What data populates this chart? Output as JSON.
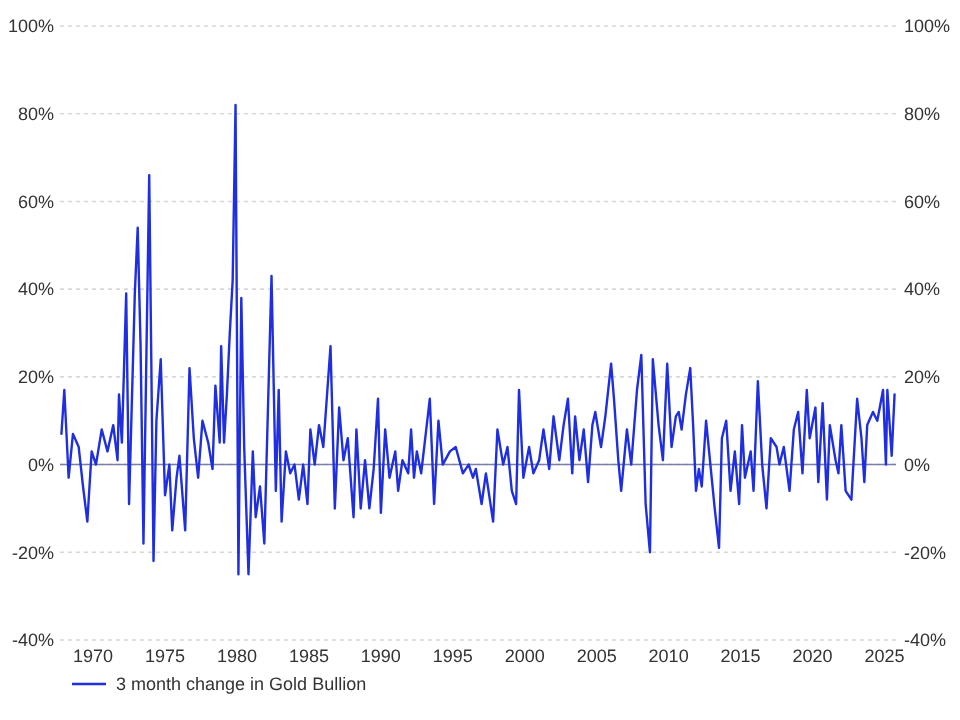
{
  "chart_data": {
    "type": "line",
    "xlim": [
      1967.7,
      2025.8
    ],
    "xticks": [
      1970,
      1975,
      1980,
      1985,
      1990,
      1995,
      2000,
      2005,
      2010,
      2015,
      2020,
      2025
    ],
    "ylim": [
      -40,
      100
    ],
    "yticks": [
      {
        "value": -40,
        "label": "-40%"
      },
      {
        "value": -20,
        "label": "-20%"
      },
      {
        "value": 0,
        "label": "0%"
      },
      {
        "value": 20,
        "label": "20%"
      },
      {
        "value": 40,
        "label": "40%"
      },
      {
        "value": 60,
        "label": "60%"
      },
      {
        "value": 80,
        "label": "80%"
      },
      {
        "value": 100,
        "label": "100%"
      }
    ],
    "y2lim": [
      -40,
      100
    ],
    "y2ticks": [
      {
        "value": -40,
        "label": "-40%"
      },
      {
        "value": -20,
        "label": "-20%"
      },
      {
        "value": 0,
        "label": "0%"
      },
      {
        "value": 20,
        "label": "20%"
      },
      {
        "value": 40,
        "label": "40%"
      },
      {
        "value": 60,
        "label": "60%"
      },
      {
        "value": 80,
        "label": "80%"
      },
      {
        "value": 100,
        "label": "100%"
      }
    ],
    "grid": "y",
    "ref_lines": [
      {
        "axis": "y",
        "value": 0,
        "color": "#7a7fa8"
      }
    ],
    "legend": "bottom left",
    "marker": "none",
    "line_style": "solid",
    "series": [
      {
        "name": "3 month change in Gold Bullion",
        "color": "#1f2fe0",
        "x": [
          1967.8,
          1968.0,
          1968.3,
          1968.6,
          1969.0,
          1969.3,
          1969.6,
          1969.9,
          1970.2,
          1970.6,
          1971.0,
          1971.4,
          1971.7,
          1971.8,
          1972.0,
          1972.3,
          1972.5,
          1972.9,
          1973.1,
          1973.3,
          1973.5,
          1973.9,
          1974.2,
          1974.4,
          1974.7,
          1975.0,
          1975.3,
          1975.5,
          1975.8,
          1976.0,
          1976.4,
          1976.7,
          1977.0,
          1977.3,
          1977.6,
          1978.0,
          1978.3,
          1978.5,
          1978.8,
          1978.9,
          1979.1,
          1979.3,
          1979.5,
          1979.7,
          1979.9,
          1980.1,
          1980.3,
          1980.5,
          1980.8,
          1981.1,
          1981.3,
          1981.6,
          1981.9,
          1982.4,
          1982.7,
          1982.9,
          1983.1,
          1983.4,
          1983.7,
          1984.0,
          1984.3,
          1984.6,
          1984.9,
          1985.1,
          1985.4,
          1985.7,
          1986.0,
          1986.5,
          1986.8,
          1987.1,
          1987.4,
          1987.7,
          1988.1,
          1988.3,
          1988.6,
          1988.9,
          1989.2,
          1989.5,
          1989.8,
          1990.0,
          1990.3,
          1990.6,
          1991.0,
          1991.2,
          1991.5,
          1991.9,
          1992.1,
          1992.3,
          1992.5,
          1992.8,
          1993.4,
          1993.7,
          1994.0,
          1994.3,
          1994.8,
          1995.2,
          1995.7,
          1996.1,
          1996.4,
          1996.6,
          1997.0,
          1997.3,
          1997.8,
          1998.1,
          1998.5,
          1998.8,
          1999.1,
          1999.4,
          1999.6,
          1999.9,
          2000.3,
          2000.6,
          2001.0,
          2001.3,
          2001.7,
          2002.0,
          2002.4,
          2002.7,
          2003.0,
          2003.3,
          2003.5,
          2003.8,
          2004.1,
          2004.4,
          2004.7,
          2004.9,
          2005.3,
          2005.6,
          2006.0,
          2006.2,
          2006.5,
          2006.7,
          2007.1,
          2007.4,
          2007.8,
          2008.1,
          2008.4,
          2008.7,
          2008.9,
          2009.3,
          2009.6,
          2009.9,
          2010.2,
          2010.5,
          2010.7,
          2010.9,
          2011.2,
          2011.5,
          2011.7,
          2011.9,
          2012.1,
          2012.3,
          2012.6,
          2012.9,
          2013.2,
          2013.5,
          2013.7,
          2014.0,
          2014.3,
          2014.6,
          2014.9,
          2015.1,
          2015.3,
          2015.7,
          2015.9,
          2016.2,
          2016.5,
          2016.8,
          2017.1,
          2017.5,
          2017.7,
          2018.0,
          2018.4,
          2018.7,
          2019.0,
          2019.3,
          2019.6,
          2019.8,
          2020.2,
          2020.4,
          2020.7,
          2021.0,
          2021.2,
          2021.6,
          2021.8,
          2022.0,
          2022.3,
          2022.7,
          2023.1,
          2023.4,
          2023.6,
          2023.8,
          2024.2,
          2024.5,
          2024.9,
          2025.1,
          2025.2,
          2025.5,
          2025.7
        ],
        "values": [
          7,
          17,
          -3,
          7,
          4,
          -5,
          -13,
          3,
          0,
          8,
          3,
          9,
          1,
          16,
          5,
          39,
          -9,
          39,
          54,
          27,
          -18,
          66,
          -22,
          10,
          24,
          -7,
          0,
          -15,
          -3,
          2,
          -15,
          22,
          6,
          -3,
          10,
          5,
          -1,
          18,
          5,
          27,
          5,
          16,
          30,
          42,
          82,
          -25,
          38,
          4,
          -25,
          3,
          -12,
          -5,
          -18,
          43,
          -6,
          17,
          -13,
          3,
          -2,
          0,
          -8,
          0,
          -9,
          8,
          0,
          9,
          4,
          27,
          -10,
          13,
          1,
          6,
          -12,
          8,
          -10,
          1,
          -10,
          -1,
          15,
          -11,
          8,
          -3,
          3,
          -6,
          1,
          -2,
          8,
          -3,
          3,
          -2,
          15,
          -9,
          10,
          0,
          3,
          4,
          -2,
          0,
          -3,
          -1,
          -9,
          -2,
          -13,
          8,
          0,
          4,
          -6,
          -9,
          17,
          -3,
          4,
          -2,
          1,
          8,
          -1,
          11,
          1,
          9,
          15,
          -2,
          11,
          1,
          8,
          -4,
          9,
          12,
          4,
          11,
          23,
          15,
          1,
          -6,
          8,
          0,
          17,
          25,
          -9,
          -20,
          24,
          9,
          1,
          23,
          4,
          11,
          12,
          8,
          16,
          22,
          9,
          -6,
          -1,
          -5,
          10,
          0,
          -10,
          -19,
          6,
          10,
          -6,
          3,
          -9,
          9,
          -3,
          3,
          -6,
          19,
          0,
          -10,
          6,
          4,
          0,
          4,
          -6,
          8,
          12,
          -2,
          17,
          6,
          13,
          -4,
          14,
          -8,
          9,
          1,
          -2,
          9,
          -6,
          -8,
          15,
          6,
          -4,
          9,
          12,
          10,
          17,
          0,
          17,
          2,
          16
        ]
      }
    ]
  }
}
